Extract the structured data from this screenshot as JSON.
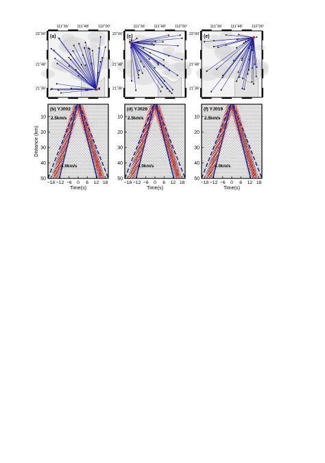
{
  "figure": {
    "map_lon_ticks": [
      "111˚36'",
      "111˚48'",
      "112˚00'"
    ],
    "map_lat_ticks": [
      "22˚00'",
      "21˚48'",
      "21˚36'"
    ],
    "time_axis_label": "Time(s)",
    "distance_axis_label": "Distance (km)",
    "slow_velocity_label": "2.5km/s",
    "fast_velocity_label": "4.0km/s",
    "colors": {
      "ray": "#1f1fa8",
      "velocity_line": "#1a2aa0",
      "waveform": "#333333",
      "arrival": "#c0281e",
      "map_land": "#d6d6d6"
    },
    "panels": [
      {
        "label": "(a)",
        "kind": "map",
        "source_corner": "bottom-right"
      },
      {
        "label": "(c)",
        "kind": "map",
        "source_corner": "top-left"
      },
      {
        "label": "(e)",
        "kind": "map",
        "source_corner": "top-right"
      },
      {
        "label": "(b) YJ002",
        "kind": "gather"
      },
      {
        "label": "(d) YJ028",
        "kind": "gather"
      },
      {
        "label": "(f) YJ019",
        "kind": "gather"
      }
    ]
  },
  "chart_data": [
    {
      "type": "line",
      "panel": "(b) YJ002",
      "xlabel": "Time(s)",
      "ylabel": "Distance (km)",
      "xlim": [
        -20,
        20
      ],
      "ylim": [
        50,
        2
      ],
      "xticks": [
        -18,
        -12,
        -6,
        0,
        6,
        12,
        18
      ],
      "yticks": [
        10,
        20,
        30,
        40,
        50
      ],
      "series": [
        {
          "name": "2.5km/s",
          "x": [
            -20,
            0,
            20
          ],
          "y": [
            50,
            0,
            50
          ]
        },
        {
          "name": "4.0km/s",
          "x": [
            -12.5,
            0,
            12.5
          ],
          "y": [
            50,
            0,
            50
          ]
        }
      ]
    },
    {
      "type": "line",
      "panel": "(d) YJ028",
      "xlabel": "Time(s)",
      "ylabel": "",
      "xlim": [
        -20,
        20
      ],
      "ylim": [
        50,
        2
      ],
      "xticks": [
        -18,
        -12,
        -6,
        0,
        6,
        12,
        18
      ],
      "yticks": [
        10,
        20,
        30,
        40,
        50
      ],
      "series": [
        {
          "name": "2.5km/s",
          "x": [
            -20,
            0,
            20
          ],
          "y": [
            50,
            0,
            50
          ]
        },
        {
          "name": "4.0km/s",
          "x": [
            -12.5,
            0,
            12.5
          ],
          "y": [
            50,
            0,
            50
          ]
        }
      ]
    },
    {
      "type": "line",
      "panel": "(f) YJ019",
      "xlabel": "Time(s)",
      "ylabel": "",
      "xlim": [
        -20,
        20
      ],
      "ylim": [
        50,
        2
      ],
      "xticks": [
        -18,
        -12,
        -6,
        0,
        6,
        12,
        18
      ],
      "yticks": [
        10,
        20,
        30,
        40,
        50
      ],
      "series": [
        {
          "name": "2.5km/s",
          "x": [
            -20,
            0,
            20
          ],
          "y": [
            50,
            0,
            50
          ]
        },
        {
          "name": "4.0km/s",
          "x": [
            -12.5,
            0,
            12.5
          ],
          "y": [
            50,
            0,
            50
          ]
        }
      ]
    }
  ]
}
